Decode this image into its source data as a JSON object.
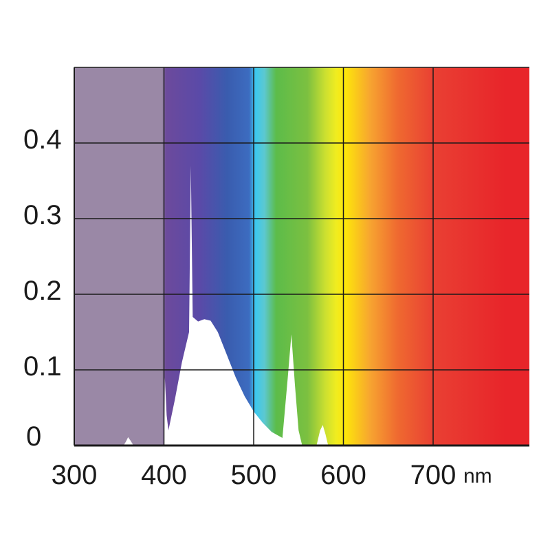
{
  "chart_data": {
    "type": "area",
    "title": "",
    "xlabel": "",
    "ylabel": "",
    "x_unit": "nm",
    "xlim": [
      300,
      780
    ],
    "ylim": [
      0,
      0.5
    ],
    "grid": true,
    "x_ticks": [
      {
        "value": 300,
        "label": "300"
      },
      {
        "value": 400,
        "label": "400"
      },
      {
        "value": 500,
        "label": "500"
      },
      {
        "value": 600,
        "label": "600"
      },
      {
        "value": 700,
        "label": "700"
      }
    ],
    "y_ticks": [
      {
        "value": 0,
        "label": "0"
      },
      {
        "value": 0.1,
        "label": "0.1"
      },
      {
        "value": 0.2,
        "label": "0.2"
      },
      {
        "value": 0.3,
        "label": "0.3"
      },
      {
        "value": 0.4,
        "label": "0.4"
      }
    ],
    "background_spectrum": [
      {
        "value": 300,
        "color": "#9a88a6"
      },
      {
        "value": 398,
        "color": "#9a88a6"
      },
      {
        "value": 402,
        "color": "#6c4a9c"
      },
      {
        "value": 440,
        "color": "#5a4aa8"
      },
      {
        "value": 470,
        "color": "#3a5cae"
      },
      {
        "value": 495,
        "color": "#3c6cc0"
      },
      {
        "value": 502,
        "color": "#3cc8ee"
      },
      {
        "value": 512,
        "color": "#5cc8d0"
      },
      {
        "value": 525,
        "color": "#5cbc4a"
      },
      {
        "value": 560,
        "color": "#7cc040"
      },
      {
        "value": 580,
        "color": "#cce030"
      },
      {
        "value": 592,
        "color": "#f0ec20"
      },
      {
        "value": 602,
        "color": "#fde60a"
      },
      {
        "value": 630,
        "color": "#f7a430"
      },
      {
        "value": 660,
        "color": "#ef6a30"
      },
      {
        "value": 700,
        "color": "#e94033"
      },
      {
        "value": 780,
        "color": "#e8252a"
      }
    ],
    "series": [
      {
        "fill": "#ffffff",
        "points": [
          [
            300,
            0
          ],
          [
            355,
            0
          ],
          [
            358,
            0.006
          ],
          [
            360,
            0.011
          ],
          [
            363,
            0.006
          ],
          [
            366,
            0
          ],
          [
            400,
            0
          ],
          [
            401,
            0.09
          ],
          [
            403,
            0.04
          ],
          [
            405,
            0.02
          ],
          [
            412,
            0.06
          ],
          [
            420,
            0.11
          ],
          [
            428,
            0.15
          ],
          [
            430,
            0.37
          ],
          [
            432,
            0.17
          ],
          [
            438,
            0.164
          ],
          [
            445,
            0.167
          ],
          [
            452,
            0.165
          ],
          [
            460,
            0.15
          ],
          [
            470,
            0.12
          ],
          [
            480,
            0.09
          ],
          [
            490,
            0.065
          ],
          [
            500,
            0.045
          ],
          [
            510,
            0.03
          ],
          [
            520,
            0.018
          ],
          [
            532,
            0.01
          ],
          [
            538,
            0.09
          ],
          [
            542,
            0.147
          ],
          [
            546,
            0.08
          ],
          [
            550,
            0.02
          ],
          [
            554,
            0
          ],
          [
            570,
            0
          ],
          [
            574,
            0.02
          ],
          [
            577,
            0.027
          ],
          [
            580,
            0.015
          ],
          [
            583,
            0
          ],
          [
            780,
            0
          ]
        ]
      }
    ]
  }
}
